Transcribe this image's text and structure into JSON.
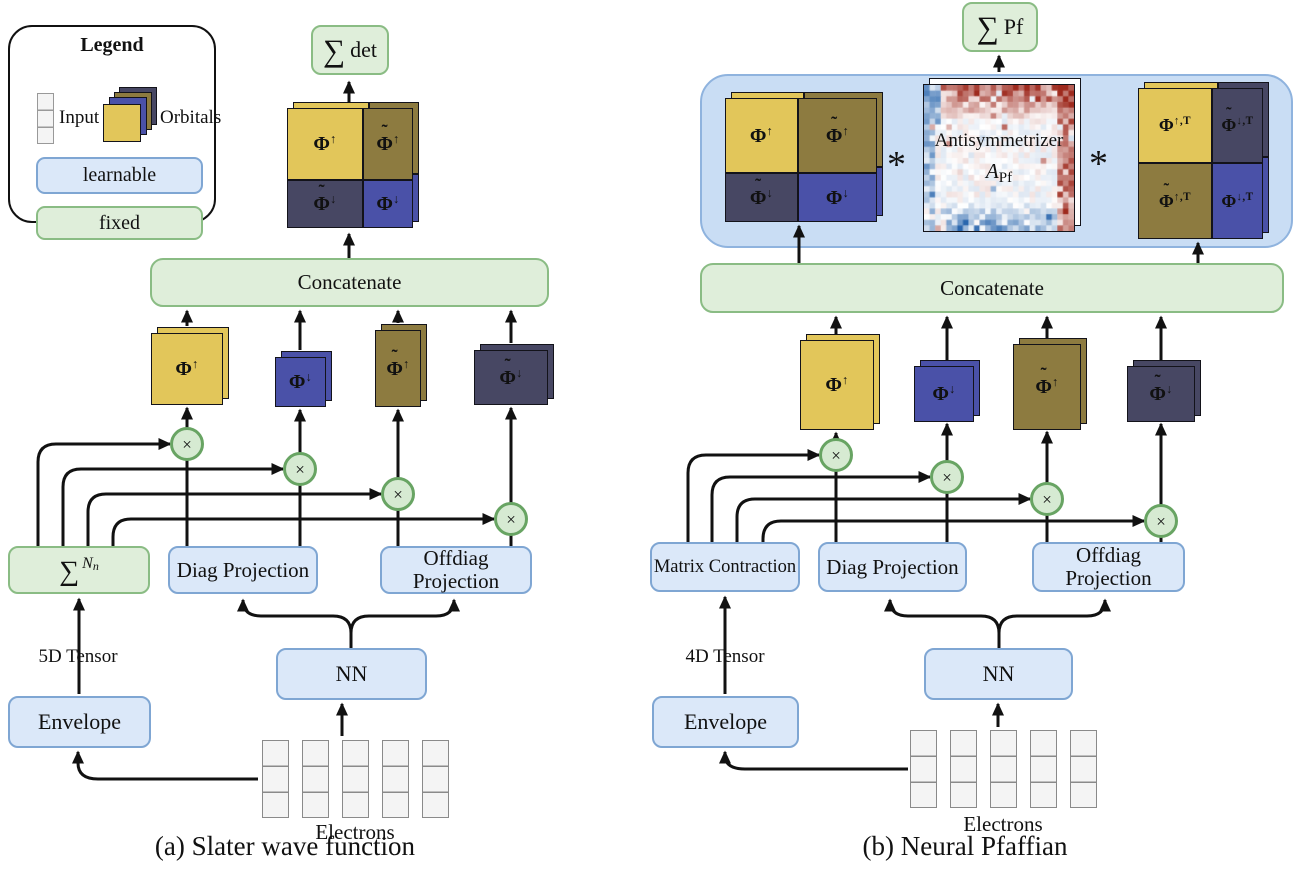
{
  "legend": {
    "title": "Legend",
    "input_label": "Input",
    "orbitals_label": "Orbitals",
    "learnable_label": "learnable",
    "fixed_label": "fixed"
  },
  "colors": {
    "orbital_yellow": "#e2c65a",
    "orbital_olive": "#8d7b40",
    "orbital_blue": "#4a51a8",
    "orbital_navy": "#474763",
    "fixed_fill": "#dfeeda",
    "fixed_border": "#8abc84",
    "learnable_fill": "#dbe8f9",
    "learnable_border": "#7fa6d3",
    "container_fill": "#c9ddf4",
    "container_border": "#8fb3de",
    "multiply_fill": "#d6ead2",
    "multiply_border": "#68a463",
    "input_cell_fill": "#f4f4f4",
    "heat_red": "#9e2a1e",
    "heat_blue": "#2a66ad"
  },
  "panel_a": {
    "caption": "(a) Slater wave function",
    "output_box": {
      "sigma": "∑",
      "label": "det"
    },
    "matrix": {
      "tl": {
        "pre": "Φ",
        "tilde": "",
        "sup": "↑"
      },
      "tr": {
        "pre": "Φ",
        "tilde": "˜",
        "sup": "↑"
      },
      "bl": {
        "pre": "Φ",
        "tilde": "˜",
        "sup": "↓"
      },
      "br": {
        "pre": "Φ",
        "tilde": "",
        "sup": "↓"
      }
    },
    "concatenate_label": "Concatenate",
    "stacks": {
      "s1": {
        "pre": "Φ",
        "tilde": "",
        "sup": "↑"
      },
      "s2": {
        "pre": "Φ",
        "tilde": "",
        "sup": "↓"
      },
      "s3": {
        "pre": "Φ",
        "tilde": "˜",
        "sup": "↑"
      },
      "s4": {
        "pre": "Φ",
        "tilde": "˜",
        "sup": "↓"
      }
    },
    "times_symbol": "×",
    "sum_box": {
      "sigma": "∑",
      "sup": "N",
      "sub": "n"
    },
    "diag_label": "Diag Projection",
    "offdiag_line1": "Offdiag",
    "offdiag_line2": "Projection",
    "tensor_label": "5D Tensor",
    "envelope_label": "Envelope",
    "nn_label": "NN",
    "electrons_label": "Electrons"
  },
  "panel_b": {
    "caption": "(b) Neural Pfaffian",
    "output_box": {
      "sigma": "∑",
      "label": "Pf"
    },
    "matrix_left": {
      "tl": {
        "pre": "Φ",
        "tilde": "",
        "sup": "↑"
      },
      "tr": {
        "pre": "Φ",
        "tilde": "˜",
        "sup": "↑"
      },
      "bl": {
        "pre": "Φ",
        "tilde": "˜",
        "sup": "↓"
      },
      "br": {
        "pre": "Φ",
        "tilde": "",
        "sup": "↓"
      }
    },
    "star": "*",
    "antisymmetrizer": {
      "label": "Antisymmetrizer",
      "sym_base": "A",
      "sym_sub": "Pf"
    },
    "matrix_right": {
      "tl": {
        "pre": "Φ",
        "tilde": "",
        "sup": "↑,T"
      },
      "tr": {
        "pre": "Φ",
        "tilde": "˜",
        "sup": "↓,T"
      },
      "bl": {
        "pre": "Φ",
        "tilde": "˜",
        "sup": "↑,T"
      },
      "br": {
        "pre": "Φ",
        "tilde": "",
        "sup": "↓,T"
      }
    },
    "concatenate_label": "Concatenate",
    "stacks": {
      "s1": {
        "pre": "Φ",
        "tilde": "",
        "sup": "↑"
      },
      "s2": {
        "pre": "Φ",
        "tilde": "",
        "sup": "↓"
      },
      "s3": {
        "pre": "Φ",
        "tilde": "˜",
        "sup": "↑"
      },
      "s4": {
        "pre": "Φ",
        "tilde": "˜",
        "sup": "↓"
      }
    },
    "times_symbol": "×",
    "contraction_label": "Matrix Contraction",
    "diag_label": "Diag Projection",
    "offdiag_line1": "Offdiag",
    "offdiag_line2": "Projection",
    "tensor_label": "4D Tensor",
    "envelope_label": "Envelope",
    "nn_label": "NN",
    "electrons_label": "Electrons"
  },
  "heatmap": {
    "rows": 26,
    "cols": 27,
    "seed": 9,
    "red": "#9e2a1e",
    "blue": "#2a66ad"
  }
}
